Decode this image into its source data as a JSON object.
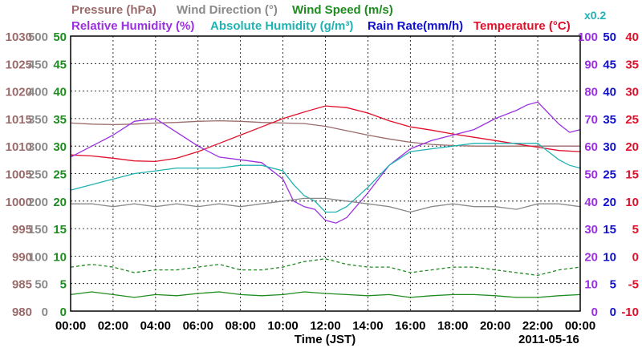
{
  "chart_data": {
    "type": "line",
    "date_label": "2011-05-16",
    "xlabel": "Time (JST)",
    "x_ticks": [
      "00:00",
      "02:00",
      "04:00",
      "06:00",
      "08:00",
      "10:00",
      "12:00",
      "14:00",
      "16:00",
      "18:00",
      "20:00",
      "22:00",
      "00:00"
    ],
    "grid": true,
    "legend": [
      {
        "label": "Pressure (hPa)",
        "color": "#9b6b6b"
      },
      {
        "label": "Wind Direction (°)",
        "color": "#8a8a8a"
      },
      {
        "label": "Wind Speed (m/s)",
        "color": "#1e8c1e"
      },
      {
        "label": "Relative Humidity (%)",
        "color": "#9b30e0"
      },
      {
        "label": "Absolute Humidity (g/m³)",
        "color": "#20b2b2"
      },
      {
        "label": "Rain Rate(mm/h)",
        "color": "#1010cc"
      },
      {
        "label": "Temperature (°C)",
        "color": "#e0102a"
      }
    ],
    "abs_humidity_scale_label": "x0.2",
    "axes": [
      {
        "name": "pressure",
        "color": "#9b6b6b",
        "range": [
          980,
          1030
        ],
        "ticks": [
          "980",
          "985",
          "990",
          "995",
          "1000",
          "1005",
          "1010",
          "1015",
          "1020",
          "1025",
          "1030"
        ]
      },
      {
        "name": "wind-direction",
        "color": "#8a8a8a",
        "range": [
          0,
          500
        ],
        "ticks": [
          "0",
          "50",
          "100",
          "150",
          "200",
          "250",
          "300",
          "350",
          "400",
          "450",
          "500"
        ]
      },
      {
        "name": "wind-speed",
        "color": "#1e8c1e",
        "range": [
          0,
          50
        ],
        "ticks": [
          "0",
          "5",
          "10",
          "15",
          "20",
          "25",
          "30",
          "35",
          "40",
          "45",
          "50"
        ]
      },
      {
        "name": "relative-humidity",
        "color": "#9b30e0",
        "range": [
          0,
          100
        ],
        "ticks": [
          "0",
          "10",
          "20",
          "30",
          "40",
          "50",
          "60",
          "70",
          "80",
          "90",
          "100"
        ]
      },
      {
        "name": "rain-rate",
        "color": "#1010cc",
        "range": [
          0,
          50
        ],
        "ticks": [
          "0",
          "5",
          "10",
          "15",
          "20",
          "25",
          "30",
          "35",
          "40",
          "45",
          "50"
        ]
      },
      {
        "name": "temperature",
        "color": "#e0102a",
        "range": [
          -10,
          40
        ],
        "ticks": [
          "-10",
          "-5",
          "0",
          "5",
          "10",
          "15",
          "20",
          "25",
          "30",
          "35",
          "40"
        ]
      }
    ],
    "series": [
      {
        "name": "Pressure (hPa)",
        "axis": "pressure",
        "color": "#9b6b6b",
        "x": [
          0,
          1,
          2,
          3,
          4,
          5,
          6,
          7,
          8,
          9,
          10,
          11,
          12,
          13,
          14,
          15,
          16,
          17,
          18,
          19,
          20,
          21,
          22,
          23,
          24
        ],
        "y": [
          1014.2,
          1014.0,
          1013.9,
          1014.0,
          1014.2,
          1014.3,
          1014.5,
          1014.6,
          1014.5,
          1014.3,
          1014.2,
          1014.1,
          1013.6,
          1012.8,
          1012.0,
          1011.3,
          1010.7,
          1010.3,
          1010.1,
          1010.0,
          1010.0,
          1010.0,
          1010.0,
          1010.0,
          1010.0
        ]
      },
      {
        "name": "Temperature (°C)",
        "axis": "temperature",
        "color": "#e0102a",
        "x": [
          0,
          1,
          2,
          3,
          4,
          5,
          6,
          7,
          8,
          9,
          10,
          11,
          12,
          13,
          14,
          15,
          16,
          17,
          18,
          19,
          20,
          21,
          22,
          23,
          24
        ],
        "y": [
          18.4,
          18.2,
          17.8,
          17.3,
          17.2,
          17.8,
          19.0,
          20.5,
          22.0,
          23.5,
          25.0,
          26.2,
          27.3,
          27.0,
          26.0,
          24.6,
          23.5,
          22.9,
          22.2,
          21.6,
          21.0,
          20.4,
          19.8,
          19.2,
          19.0
        ]
      },
      {
        "name": "Relative Humidity (%)",
        "axis": "relative-humidity",
        "color": "#9b30e0",
        "x": [
          0,
          1,
          2,
          3,
          4,
          5,
          6,
          7,
          8,
          9,
          10,
          10.5,
          11,
          11.5,
          12,
          12.5,
          13,
          14,
          15,
          16,
          17,
          18,
          19,
          20,
          21,
          21.5,
          22,
          22.5,
          23,
          23.5,
          24
        ],
        "y": [
          56,
          60,
          64,
          69,
          70,
          65,
          60,
          56,
          55,
          54,
          48,
          40,
          38,
          37,
          33,
          32,
          34,
          43,
          53,
          59,
          62,
          64,
          66,
          70,
          73,
          75,
          76,
          72,
          68,
          65,
          66
        ]
      },
      {
        "name": "Absolute Humidity (g/m³)",
        "axis": "relative-humidity",
        "color": "#20b2b2",
        "x": [
          0,
          1,
          2,
          3,
          4,
          5,
          6,
          7,
          8,
          9,
          10,
          10.5,
          11,
          11.5,
          12,
          12.5,
          13,
          14,
          15,
          16,
          17,
          18,
          19,
          20,
          21,
          22,
          22.5,
          23,
          23.5,
          24
        ],
        "y": [
          44,
          46,
          48,
          50,
          51,
          52,
          52,
          52,
          53,
          53,
          51,
          46,
          42,
          40,
          36,
          36,
          38,
          45,
          53,
          58,
          59,
          60,
          61,
          61,
          61,
          61,
          58,
          55,
          53,
          52
        ]
      },
      {
        "name": "Wind Direction (°)",
        "axis": "wind-direction",
        "color": "#8a8a8a",
        "x": [
          0,
          1,
          2,
          3,
          4,
          5,
          6,
          7,
          8,
          9,
          10,
          11,
          12,
          13,
          14,
          15,
          16,
          17,
          18,
          19,
          20,
          21,
          22,
          23,
          24
        ],
        "y": [
          195,
          195,
          190,
          195,
          190,
          195,
          190,
          195,
          190,
          195,
          200,
          205,
          205,
          200,
          195,
          190,
          180,
          190,
          195,
          190,
          190,
          185,
          195,
          195,
          190
        ]
      },
      {
        "name": "Wind Speed mean (m/s)",
        "axis": "wind-speed",
        "color": "#1e8c1e",
        "x": [
          0,
          1,
          2,
          3,
          4,
          5,
          6,
          7,
          8,
          9,
          10,
          11,
          12,
          13,
          14,
          15,
          16,
          17,
          18,
          19,
          20,
          21,
          22,
          23,
          24
        ],
        "y": [
          3.0,
          3.5,
          3.0,
          2.5,
          3.0,
          2.8,
          3.2,
          3.5,
          3.0,
          2.8,
          3.0,
          3.5,
          3.2,
          3.0,
          2.8,
          3.0,
          2.5,
          2.8,
          3.0,
          3.0,
          2.8,
          2.5,
          2.5,
          2.8,
          3.0
        ]
      },
      {
        "name": "Wind Speed max (m/s)",
        "axis": "wind-speed",
        "color": "#1e8c1e",
        "dashed": true,
        "x": [
          0,
          1,
          2,
          3,
          4,
          5,
          6,
          7,
          8,
          9,
          10,
          11,
          12,
          13,
          14,
          15,
          16,
          17,
          18,
          19,
          20,
          21,
          22,
          23,
          24
        ],
        "y": [
          8.0,
          8.5,
          8.0,
          7.0,
          7.5,
          7.5,
          8.0,
          8.5,
          7.5,
          7.5,
          8.0,
          9.0,
          9.5,
          8.5,
          8.0,
          8.0,
          7.0,
          7.5,
          8.0,
          8.0,
          7.5,
          7.0,
          6.5,
          7.5,
          8.0
        ]
      }
    ]
  }
}
